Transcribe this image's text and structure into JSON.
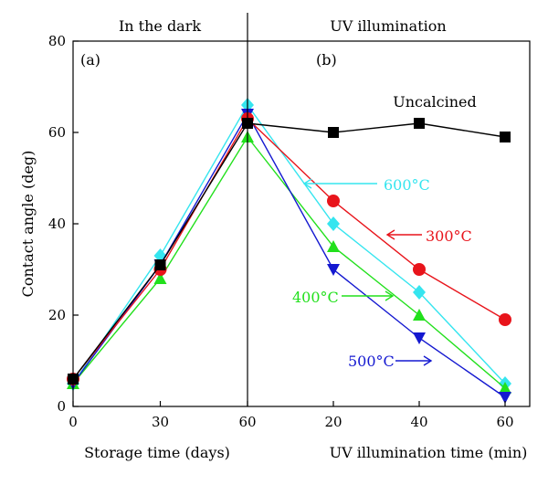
{
  "chart_data": {
    "type": "line",
    "panel_labels": {
      "a": "(a)",
      "b": "(b)"
    },
    "section_titles": {
      "dark": "In the dark",
      "uv": "UV illumination"
    },
    "xlabels": {
      "dark": "Storage time (days)",
      "uv": "UV illumination time (min)"
    },
    "ylabel": "Contact angle (deg)",
    "ylim": [
      0,
      80
    ],
    "yticks": [
      0,
      20,
      40,
      60,
      80
    ],
    "x_dark": {
      "values": [
        0,
        30,
        60
      ],
      "tick_labels": [
        "0",
        "30",
        "60"
      ]
    },
    "x_uv": {
      "values": [
        0,
        20,
        40,
        60
      ],
      "tick_labels": [
        "20",
        "40",
        "60"
      ]
    },
    "series": [
      {
        "name": "Uncalcined",
        "color": "#000000",
        "marker": "square",
        "dark": [
          6,
          31,
          62
        ],
        "uv": [
          62,
          60,
          62,
          59
        ]
      },
      {
        "name": "300°C",
        "color": "#e8141b",
        "marker": "circle",
        "dark": [
          6,
          30,
          63
        ],
        "uv": [
          63,
          45,
          30,
          19
        ]
      },
      {
        "name": "400°C",
        "color": "#22e01c",
        "marker": "triangle-up",
        "dark": [
          5,
          28,
          59
        ],
        "uv": [
          59,
          35,
          20,
          4
        ]
      },
      {
        "name": "500°C",
        "color": "#1418d0",
        "marker": "triangle-down",
        "dark": [
          5,
          31,
          64
        ],
        "uv": [
          64,
          30,
          15,
          2
        ]
      },
      {
        "name": "600°C",
        "color": "#35e5ef",
        "marker": "diamond",
        "dark": [
          5,
          33,
          66
        ],
        "uv": [
          66,
          40,
          25,
          5
        ]
      }
    ]
  }
}
